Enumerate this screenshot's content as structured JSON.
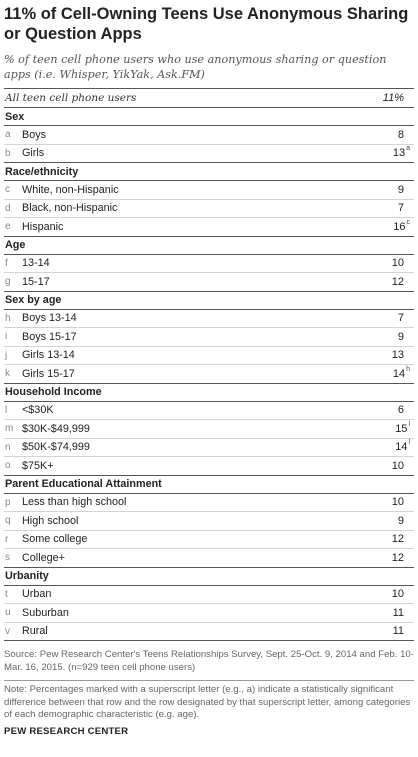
{
  "title": "11% of Cell-Owning Teens Use Anonymous Sharing or Question Apps",
  "subtitle": "% of teen cell phone users who use anonymous sharing or question apps (i.e. Whisper, YikYak, Ask.FM)",
  "all_row": {
    "label": "All teen cell phone users",
    "value": "11%"
  },
  "chart_data": {
    "type": "table",
    "title": "11% of Cell-Owning Teens Use Anonymous Sharing or Question Apps",
    "columns": [
      "",
      "",
      "%"
    ],
    "overall": {
      "label": "All teen cell phone users",
      "value": 11
    },
    "sections": [
      {
        "name": "Sex",
        "rows": [
          {
            "letter": "a",
            "label": "Boys",
            "value": 8,
            "sup": ""
          },
          {
            "letter": "b",
            "label": "Girls",
            "value": 13,
            "sup": "a"
          }
        ]
      },
      {
        "name": "Race/ethnicity",
        "rows": [
          {
            "letter": "c",
            "label": "White, non-Hispanic",
            "value": 9,
            "sup": ""
          },
          {
            "letter": "d",
            "label": "Black, non-Hispanic",
            "value": 7,
            "sup": ""
          },
          {
            "letter": "e",
            "label": "Hispanic",
            "value": 16,
            "sup": "c"
          }
        ]
      },
      {
        "name": "Age",
        "rows": [
          {
            "letter": "f",
            "label": "13-14",
            "value": 10,
            "sup": ""
          },
          {
            "letter": "g",
            "label": "15-17",
            "value": 12,
            "sup": ""
          }
        ]
      },
      {
        "name": "Sex by age",
        "rows": [
          {
            "letter": "h",
            "label": "Boys 13-14",
            "value": 7,
            "sup": ""
          },
          {
            "letter": "i",
            "label": "Boys 15-17",
            "value": 9,
            "sup": ""
          },
          {
            "letter": "j",
            "label": "Girls 13-14",
            "value": 13,
            "sup": ""
          },
          {
            "letter": "k",
            "label": "Girls 15-17",
            "value": 14,
            "sup": "h"
          }
        ]
      },
      {
        "name": "Household Income",
        "rows": [
          {
            "letter": "l",
            "label": "<$30K",
            "value": 6,
            "sup": ""
          },
          {
            "letter": "m",
            "label": "$30K-$49,999",
            "value": 15,
            "sup": "l"
          },
          {
            "letter": "n",
            "label": "$50K-$74,999",
            "value": 14,
            "sup": "l"
          },
          {
            "letter": "o",
            "label": "$75K+",
            "value": 10,
            "sup": ""
          }
        ]
      },
      {
        "name": "Parent Educational Attainment",
        "rows": [
          {
            "letter": "p",
            "label": "Less than high school",
            "value": 10,
            "sup": ""
          },
          {
            "letter": "q",
            "label": "High school",
            "value": 9,
            "sup": ""
          },
          {
            "letter": "r",
            "label": "Some college",
            "value": 12,
            "sup": ""
          },
          {
            "letter": "s",
            "label": "College+",
            "value": 12,
            "sup": ""
          }
        ]
      },
      {
        "name": "Urbanity",
        "rows": [
          {
            "letter": "t",
            "label": "Urban",
            "value": 10,
            "sup": ""
          },
          {
            "letter": "u",
            "label": "Suburban",
            "value": 11,
            "sup": ""
          },
          {
            "letter": "v",
            "label": "Rural",
            "value": 11,
            "sup": ""
          }
        ]
      }
    ]
  },
  "source": "Source: Pew Research Center's Teens Relationships Survey, Sept. 25-Oct. 9, 2014 and Feb. 10-Mar. 16, 2015. (n=929 teen cell phone users)",
  "note": "Note: Percentages marked with a superscript letter (e.g., a) indicate a statistically significant difference between that row and the row designated by that superscript letter, among categories of each demographic characteristic (e.g. age).",
  "brand": "PEW RESEARCH CENTER"
}
